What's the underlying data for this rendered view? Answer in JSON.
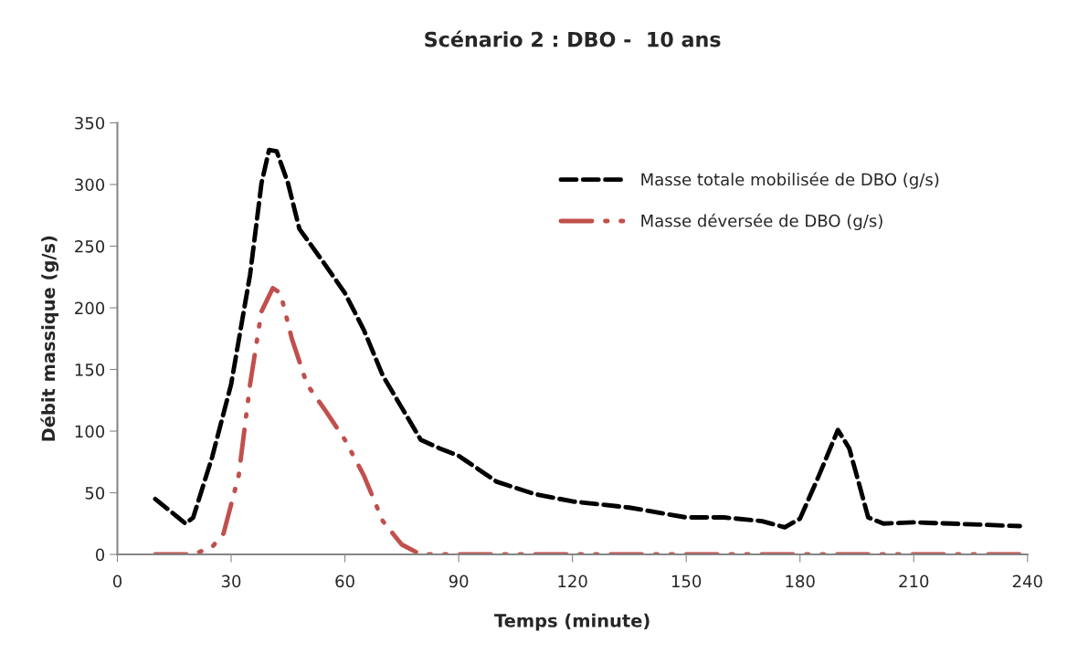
{
  "chart_data": {
    "type": "line",
    "title": "Scénario 2 : DBO -  10 ans",
    "xlabel": "Temps (minute)",
    "ylabel": "Débit massique (g/s)",
    "xlim": [
      0,
      240
    ],
    "xticks": [
      0,
      30,
      60,
      90,
      120,
      150,
      180,
      210,
      240
    ],
    "ylim": [
      0,
      350
    ],
    "yticks": [
      0,
      50,
      100,
      150,
      200,
      250,
      300,
      350
    ],
    "grid": false,
    "legend": "top right",
    "marker": "none",
    "series": [
      {
        "name": "Masse totale mobilisée de DBO (g/s)",
        "color": "#000000",
        "line_style": "dashed",
        "x": [
          10,
          18,
          20,
          25,
          30,
          35,
          38,
          40,
          42,
          45,
          48,
          55,
          60,
          65,
          70,
          75,
          80,
          85,
          90,
          100,
          110,
          120,
          135,
          150,
          160,
          170,
          176,
          180,
          185,
          190,
          193,
          198,
          202,
          210,
          220,
          238
        ],
        "values": [
          45,
          25,
          30,
          79,
          138,
          227,
          301,
          328,
          327,
          301,
          264,
          234,
          212,
          182,
          145,
          119,
          93,
          86,
          80,
          59,
          49,
          43,
          38,
          30,
          30,
          27,
          22,
          29,
          64,
          101,
          86,
          30,
          25,
          26,
          25,
          23
        ]
      },
      {
        "name": "Masse déversée de DBO (g/s)",
        "color": "#c0504d",
        "line_style": "dashdotdot",
        "x": [
          10,
          15,
          20,
          25,
          28,
          32,
          35,
          38,
          41,
          43,
          46,
          50,
          55,
          60,
          65,
          70,
          75,
          80,
          90,
          120,
          150,
          180,
          210,
          238
        ],
        "values": [
          0,
          0,
          0,
          6,
          17,
          64,
          138,
          197,
          216,
          212,
          175,
          138,
          116,
          93,
          64,
          27,
          8,
          0,
          0,
          0,
          0,
          0,
          0,
          0
        ]
      }
    ]
  }
}
